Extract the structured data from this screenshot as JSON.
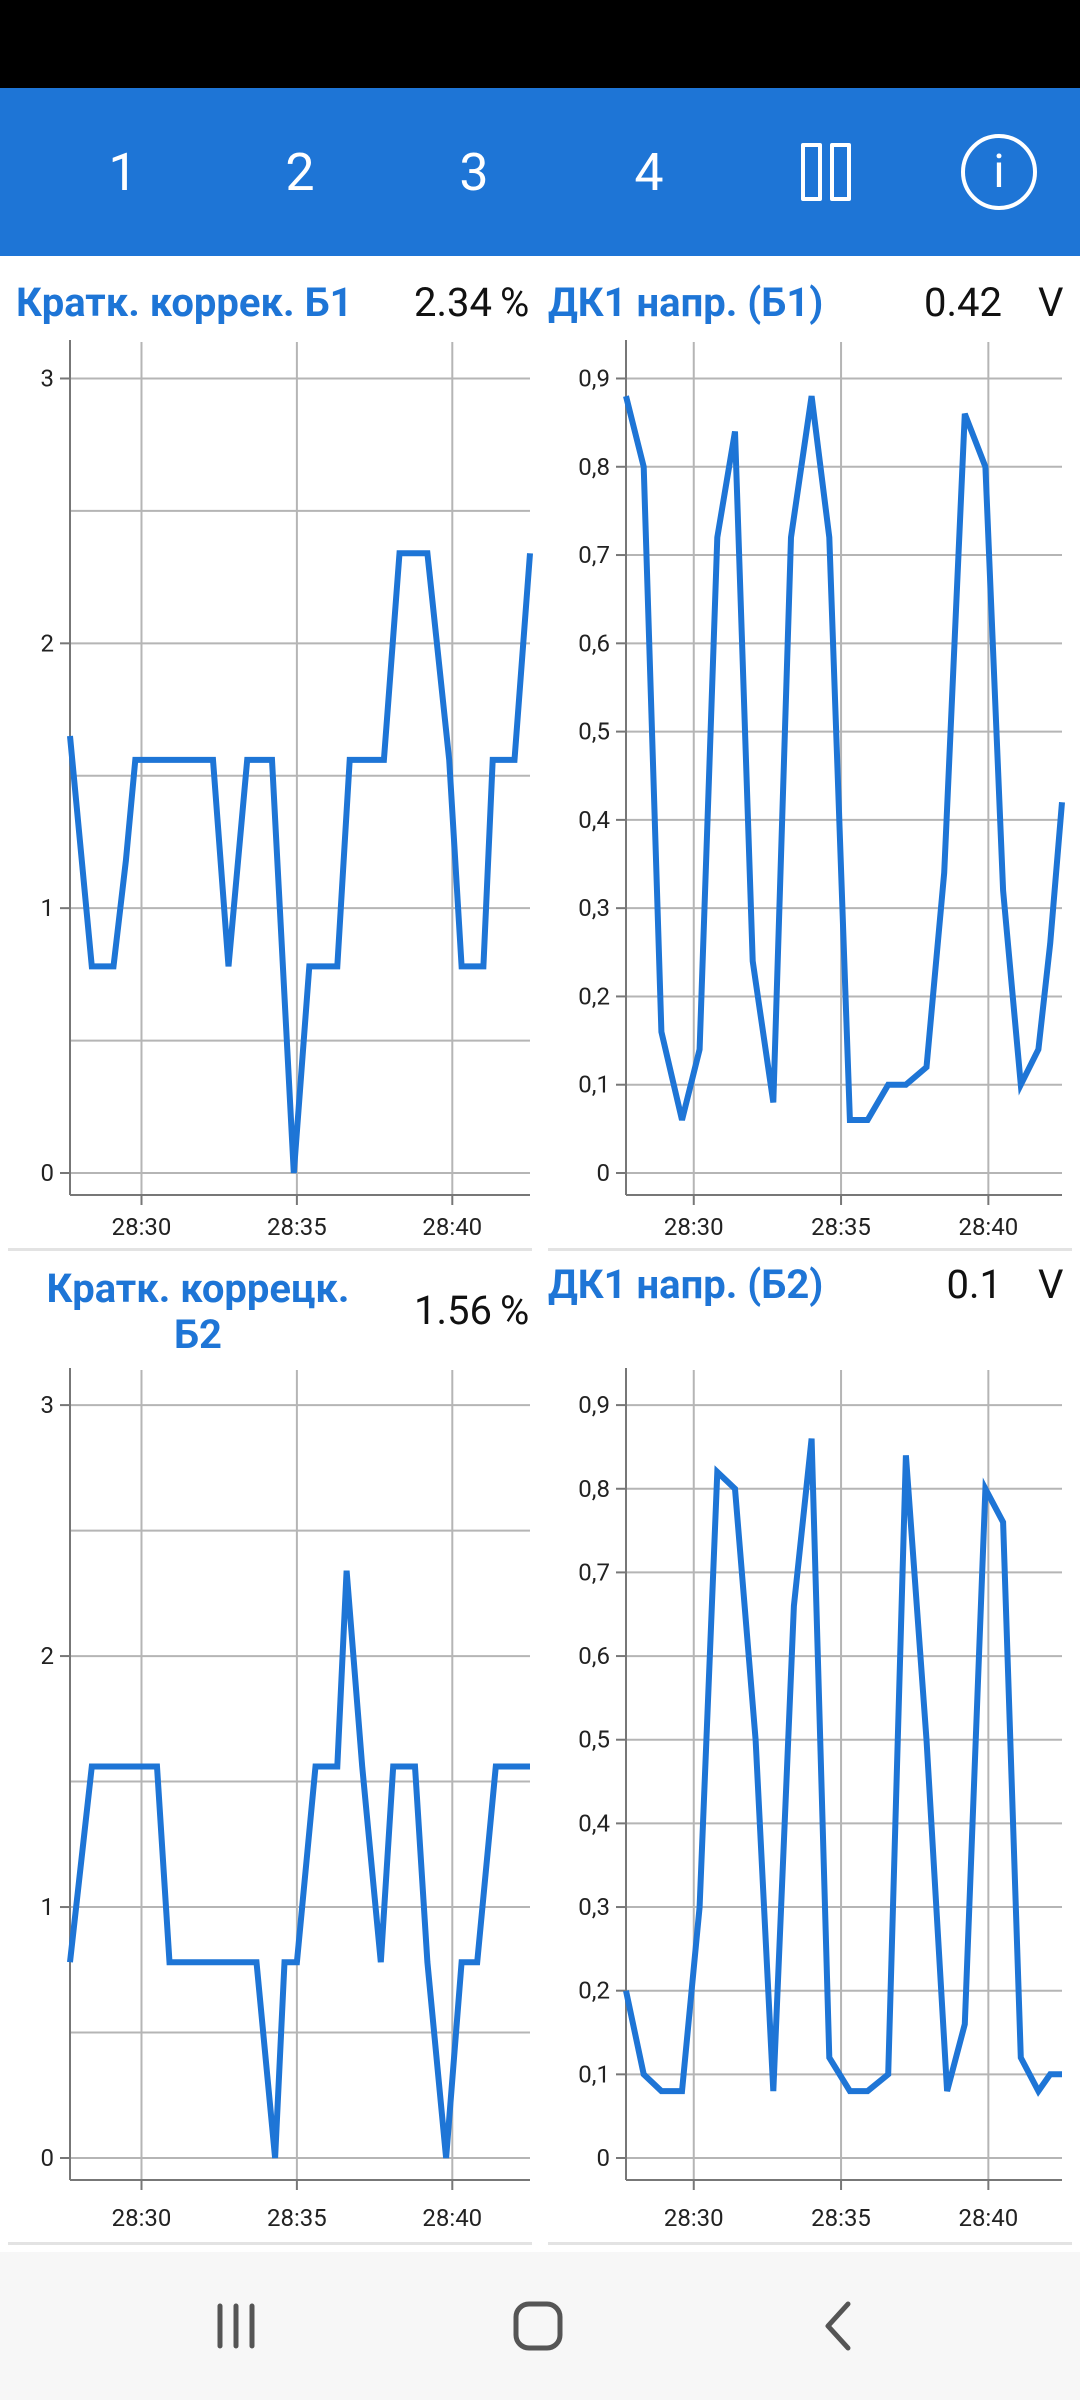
{
  "app_bar": {
    "tabs": [
      "1",
      "2",
      "3",
      "4"
    ],
    "pause_icon": "pause-icon",
    "info_icon": "info-icon",
    "info_glyph": "i",
    "background": "#1e75d6"
  },
  "gauges": [
    {
      "name": "Кратк. коррек. Б1",
      "value": "2.34",
      "unit": "%"
    },
    {
      "name": "ДК1 напр. (Б1)",
      "value": "0.42",
      "unit": "V"
    },
    {
      "name_line1": "Кратк. коррецк.",
      "name_line2": "Б2",
      "value": "1.56",
      "unit": "%"
    },
    {
      "name": "ДК1 напр. (Б2)",
      "value": "0.1",
      "unit": "V"
    }
  ],
  "chart_data": [
    {
      "type": "line",
      "xlim": [
        27.7,
        42.5
      ],
      "xticks": [
        30,
        35,
        40
      ],
      "xticklabels": [
        "28:30",
        "28:35",
        "28:40"
      ],
      "ylim": [
        0,
        3.1
      ],
      "yticks": [
        0,
        1,
        2,
        3
      ],
      "yticklabels": [
        "0",
        "1",
        "2",
        "3"
      ],
      "grid": true,
      "color": "#1e75d6",
      "x": [
        27.7,
        28.4,
        28.6,
        29.1,
        29.5,
        29.8,
        30.5,
        31.2,
        31.5,
        32.0,
        32.3,
        32.8,
        33.4,
        34.2,
        34.9,
        35.4,
        35.8,
        36.3,
        36.7,
        37.2,
        37.8,
        38.3,
        38.6,
        39.2,
        39.9,
        40.3,
        40.6,
        41.0,
        41.3,
        41.6,
        42.0,
        42.5
      ],
      "y": [
        1.65,
        0.78,
        0.78,
        0.78,
        1.18,
        1.56,
        1.56,
        1.56,
        1.56,
        1.56,
        1.56,
        0.78,
        1.56,
        1.56,
        0.0,
        0.78,
        0.78,
        0.78,
        1.56,
        1.56,
        1.56,
        2.34,
        2.34,
        2.34,
        1.56,
        0.78,
        0.78,
        0.78,
        1.56,
        1.56,
        1.56,
        2.34
      ]
    },
    {
      "type": "line",
      "xlim": [
        27.7,
        42.5
      ],
      "xticks": [
        30,
        35,
        40
      ],
      "xticklabels": [
        "28:30",
        "28:35",
        "28:40"
      ],
      "ylim": [
        0,
        0.93
      ],
      "yticks": [
        0,
        0.1,
        0.2,
        0.3,
        0.4,
        0.5,
        0.6,
        0.7,
        0.8,
        0.9
      ],
      "yticklabels": [
        "0",
        "0,1",
        "0,2",
        "0,3",
        "0,4",
        "0,5",
        "0,6",
        "0,7",
        "0,8",
        "0,9"
      ],
      "grid": true,
      "color": "#1e75d6",
      "x": [
        27.7,
        28.3,
        28.9,
        29.6,
        30.2,
        30.8,
        31.4,
        32.0,
        32.7,
        33.3,
        34.0,
        34.6,
        35.3,
        35.9,
        36.6,
        37.2,
        37.9,
        38.5,
        39.2,
        39.9,
        40.5,
        41.1,
        41.7,
        42.1,
        42.5
      ],
      "y": [
        0.88,
        0.8,
        0.16,
        0.06,
        0.14,
        0.72,
        0.84,
        0.24,
        0.08,
        0.72,
        0.88,
        0.72,
        0.06,
        0.06,
        0.1,
        0.1,
        0.12,
        0.34,
        0.86,
        0.8,
        0.32,
        0.1,
        0.14,
        0.26,
        0.42
      ]
    },
    {
      "type": "line",
      "xlim": [
        27.7,
        42.5
      ],
      "xticks": [
        30,
        35,
        40
      ],
      "xticklabels": [
        "28:30",
        "28:35",
        "28:40"
      ],
      "ylim": [
        0,
        3.1
      ],
      "yticks": [
        0,
        1,
        2,
        3
      ],
      "yticklabels": [
        "0",
        "1",
        "2",
        "3"
      ],
      "grid": true,
      "color": "#1e75d6",
      "x": [
        27.7,
        28.4,
        28.7,
        29.1,
        29.6,
        30.2,
        30.5,
        30.9,
        31.4,
        32.0,
        32.6,
        33.1,
        33.7,
        34.3,
        34.6,
        35.0,
        35.6,
        36.3,
        36.6,
        37.1,
        37.7,
        38.1,
        38.4,
        38.8,
        39.2,
        39.8,
        40.3,
        40.8,
        41.4,
        41.7,
        42.5
      ],
      "y": [
        0.78,
        1.56,
        1.56,
        1.56,
        1.56,
        1.56,
        1.56,
        0.78,
        0.78,
        0.78,
        0.78,
        0.78,
        0.78,
        0.0,
        0.78,
        0.78,
        1.56,
        1.56,
        2.34,
        1.56,
        0.78,
        1.56,
        1.56,
        1.56,
        0.78,
        0.0,
        0.78,
        0.78,
        1.56,
        1.56,
        1.56
      ]
    },
    {
      "type": "line",
      "xlim": [
        27.7,
        42.5
      ],
      "xticks": [
        30,
        35,
        40
      ],
      "xticklabels": [
        "28:30",
        "28:35",
        "28:40"
      ],
      "ylim": [
        0,
        0.93
      ],
      "yticks": [
        0,
        0.1,
        0.2,
        0.3,
        0.4,
        0.5,
        0.6,
        0.7,
        0.8,
        0.9
      ],
      "yticklabels": [
        "0",
        "0,1",
        "0,2",
        "0,3",
        "0,4",
        "0,5",
        "0,6",
        "0,7",
        "0,8",
        "0,9"
      ],
      "grid": true,
      "color": "#1e75d6",
      "x": [
        27.7,
        28.3,
        28.9,
        29.6,
        30.2,
        30.8,
        31.4,
        32.1,
        32.7,
        33.4,
        34.0,
        34.6,
        35.3,
        35.9,
        36.6,
        37.2,
        37.9,
        38.6,
        39.2,
        39.9,
        40.5,
        41.1,
        41.7,
        42.1,
        42.5
      ],
      "y": [
        0.2,
        0.1,
        0.08,
        0.08,
        0.3,
        0.82,
        0.8,
        0.5,
        0.08,
        0.66,
        0.86,
        0.12,
        0.08,
        0.08,
        0.1,
        0.84,
        0.5,
        0.08,
        0.16,
        0.8,
        0.76,
        0.12,
        0.08,
        0.1,
        0.1
      ]
    }
  ],
  "nav_bar": {
    "recent_icon": "recent-apps-icon",
    "home_icon": "home-icon",
    "back_icon": "back-icon"
  }
}
